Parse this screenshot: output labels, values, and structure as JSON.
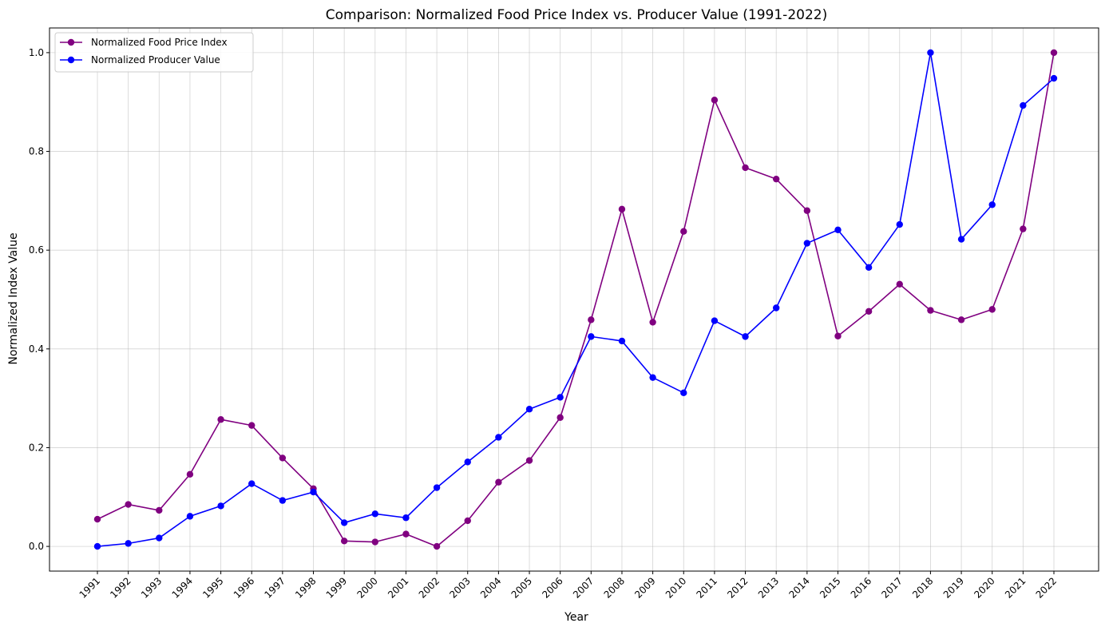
{
  "chart_data": {
    "type": "line",
    "title": "Comparison: Normalized Food Price Index vs. Producer Value (1991-2022)",
    "xlabel": "Year",
    "ylabel": "Normalized Index Value",
    "categories": [
      "1991",
      "1992",
      "1993",
      "1994",
      "1995",
      "1996",
      "1997",
      "1998",
      "1999",
      "2000",
      "2001",
      "2002",
      "2003",
      "2004",
      "2005",
      "2006",
      "2007",
      "2008",
      "2009",
      "2010",
      "2011",
      "2012",
      "2013",
      "2014",
      "2015",
      "2016",
      "2017",
      "2018",
      "2019",
      "2020",
      "2021",
      "2022"
    ],
    "yticks": [
      "0.0",
      "0.2",
      "0.4",
      "0.6",
      "0.8",
      "1.0"
    ],
    "ylim": [
      -0.05,
      1.05
    ],
    "grid": true,
    "legend_position": "top-left",
    "series": [
      {
        "name": "Normalized Food Price Index",
        "color": "#800080",
        "values": [
          0.055,
          0.085,
          0.073,
          0.146,
          0.257,
          0.245,
          0.179,
          0.117,
          0.011,
          0.009,
          0.025,
          0.0,
          0.052,
          0.13,
          0.174,
          0.261,
          0.459,
          0.683,
          0.454,
          0.638,
          0.904,
          0.767,
          0.744,
          0.68,
          0.426,
          0.476,
          0.531,
          0.478,
          0.459,
          0.48,
          0.643,
          1.0
        ]
      },
      {
        "name": "Normalized Producer Value",
        "color": "#0000ff",
        "values": [
          0.0,
          0.006,
          0.017,
          0.061,
          0.082,
          0.127,
          0.093,
          0.11,
          0.048,
          0.066,
          0.058,
          0.119,
          0.171,
          0.221,
          0.278,
          0.302,
          0.425,
          0.416,
          0.342,
          0.311,
          0.457,
          0.425,
          0.483,
          0.614,
          0.641,
          0.565,
          0.652,
          1.0,
          0.622,
          0.692,
          0.893,
          0.948
        ]
      }
    ]
  }
}
